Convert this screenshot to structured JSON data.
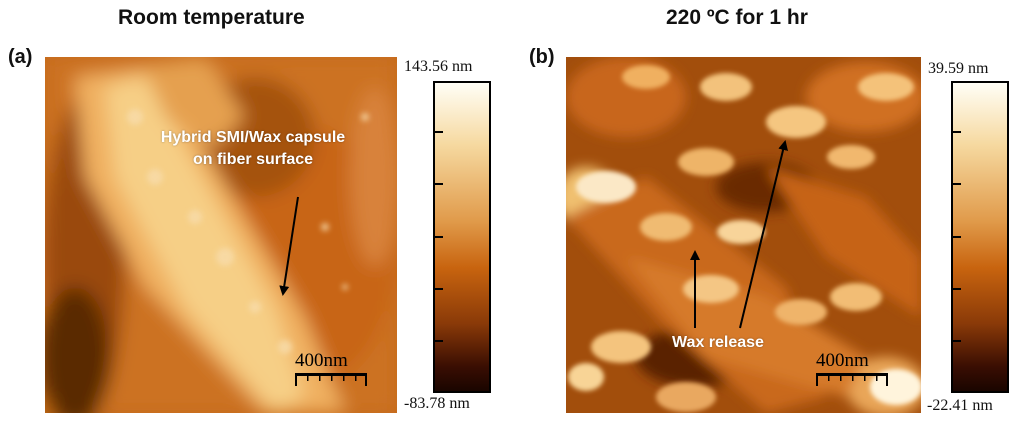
{
  "panel_a": {
    "heading": "Room temperature",
    "label": "(a)",
    "annotation_line1": "Hybrid SMI/Wax capsule",
    "annotation_line2": "on fiber surface",
    "scale_bar": "400nm",
    "colorbar_max": "143.56 nm",
    "colorbar_min": "-83.78 nm"
  },
  "panel_b": {
    "heading": "220 ºC for 1 hr",
    "label": "(b)",
    "annotation": "Wax release",
    "scale_bar": "400nm",
    "colorbar_max": "39.59 nm",
    "colorbar_min": "-22.41 nm"
  },
  "colors": {
    "afm_dark": "#1a0500",
    "afm_mid": "#c8640f",
    "afm_light": "#f6d9a0",
    "afm_white": "#fffef6"
  }
}
